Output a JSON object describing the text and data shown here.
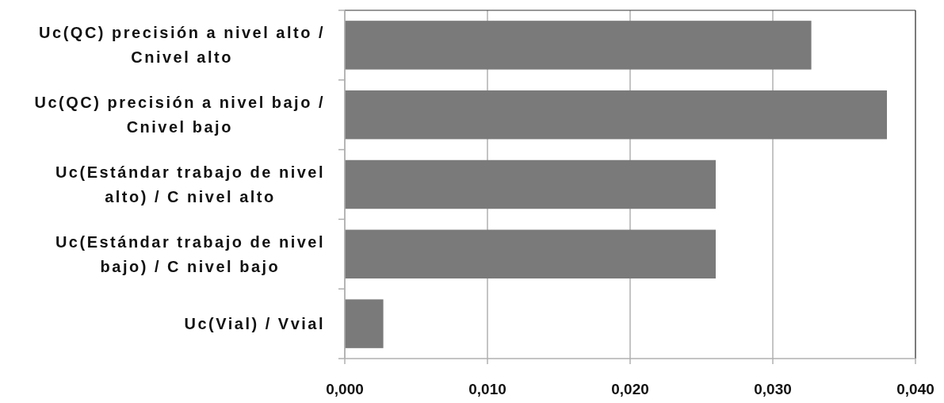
{
  "chart_data": {
    "type": "bar",
    "orientation": "horizontal",
    "categories": [
      "Uc(QC) precisión a nivel alto / Cnivel alto",
      "Uc(QC) precisión a nivel bajo / Cnivel bajo",
      "Uc(Estándar trabajo de nivel alto) / C nivel alto",
      "Uc(Estándar trabajo de nivel bajo) / C nivel bajo",
      "Uc(Vial) / Vvial"
    ],
    "values": [
      0.0327,
      0.038,
      0.026,
      0.026,
      0.0027
    ],
    "color": "#7a7a7a",
    "xlim": [
      0,
      0.04
    ],
    "xticks": [
      {
        "value": 0,
        "label": "0,000"
      },
      {
        "value": 0.01,
        "label": "0,010"
      },
      {
        "value": 0.02,
        "label": "0,020"
      },
      {
        "value": 0.03,
        "label": "0,030"
      },
      {
        "value": 0.04,
        "label": "0,040"
      }
    ],
    "grid": "x"
  }
}
